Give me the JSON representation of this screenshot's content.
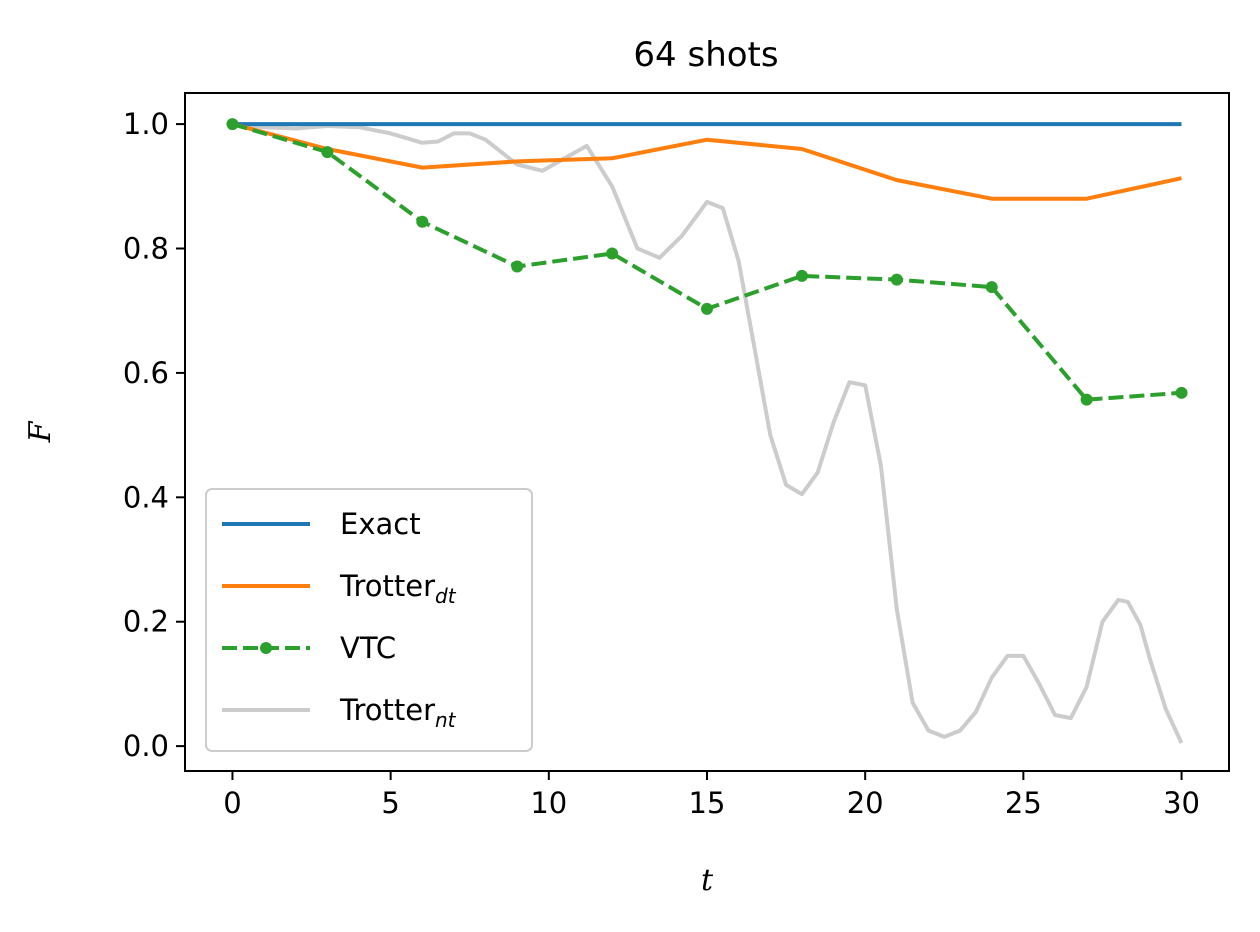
{
  "chart_data": {
    "type": "line",
    "title": "64 shots",
    "xlabel": "t",
    "ylabel": "F",
    "xlim": [
      -1.5,
      31.5
    ],
    "ylim": [
      -0.04,
      1.05
    ],
    "xticks": [
      0,
      5,
      10,
      15,
      20,
      25,
      30
    ],
    "xtick_labels": [
      "0",
      "5",
      "10",
      "15",
      "20",
      "25",
      "30"
    ],
    "yticks": [
      0.0,
      0.2,
      0.4,
      0.6,
      0.8,
      1.0
    ],
    "ytick_labels": [
      "0.0",
      "0.2",
      "0.4",
      "0.6",
      "0.8",
      "1.0"
    ],
    "grid": false,
    "legend_position": "lower-left",
    "series": [
      {
        "name": "Exact",
        "color": "#1f77b4",
        "style": "solid",
        "x": [
          0,
          30
        ],
        "y": [
          1.0,
          1.0
        ]
      },
      {
        "name": "Trotter",
        "name_subscript": "dt",
        "color": "#ff7f0e",
        "style": "solid",
        "x": [
          0,
          3,
          6,
          9,
          12,
          15,
          18,
          21,
          24,
          27,
          30
        ],
        "y": [
          1.0,
          0.96,
          0.93,
          0.94,
          0.945,
          0.975,
          0.96,
          0.91,
          0.88,
          0.88,
          0.913
        ]
      },
      {
        "name": "VTC",
        "color": "#2ca02c",
        "style": "dashed",
        "marker": "circle",
        "x": [
          0,
          3,
          6,
          9,
          12,
          15,
          18,
          21,
          24,
          27,
          30
        ],
        "y": [
          1.0,
          0.955,
          0.843,
          0.771,
          0.792,
          0.703,
          0.756,
          0.75,
          0.738,
          0.557,
          0.568
        ]
      },
      {
        "name": "Trotter",
        "name_subscript": "nt",
        "color": "#cccccc",
        "style": "solid",
        "x": [
          0,
          1,
          2,
          3,
          4,
          5,
          6,
          6.5,
          7,
          7.5,
          8,
          9,
          9.8,
          10.5,
          11.2,
          12,
          12.8,
          13.5,
          14.2,
          15,
          15.5,
          16,
          16.5,
          17,
          17.5,
          18,
          18.5,
          19,
          19.5,
          20,
          20.5,
          21,
          21.5,
          22,
          22.5,
          23,
          23.5,
          24,
          24.5,
          25,
          25.5,
          26,
          26.5,
          27,
          27.5,
          28,
          28.3,
          28.7,
          29,
          29.5,
          30
        ],
        "y": [
          1.0,
          0.995,
          0.993,
          0.997,
          0.995,
          0.985,
          0.97,
          0.972,
          0.985,
          0.985,
          0.975,
          0.935,
          0.925,
          0.945,
          0.965,
          0.9,
          0.8,
          0.785,
          0.82,
          0.875,
          0.865,
          0.78,
          0.64,
          0.5,
          0.42,
          0.405,
          0.44,
          0.52,
          0.585,
          0.58,
          0.45,
          0.22,
          0.07,
          0.025,
          0.015,
          0.025,
          0.055,
          0.11,
          0.145,
          0.145,
          0.1,
          0.05,
          0.045,
          0.095,
          0.2,
          0.235,
          0.232,
          0.195,
          0.14,
          0.06,
          0.005
        ]
      }
    ]
  }
}
